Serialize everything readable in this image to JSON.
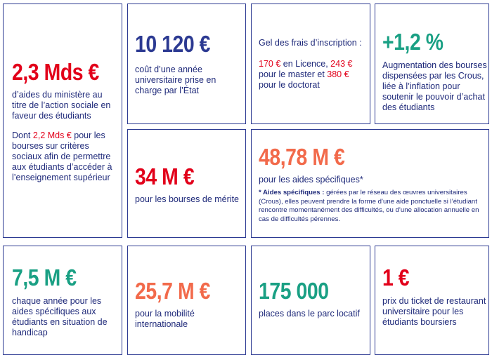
{
  "colors": {
    "navy": "#2c3a92",
    "red": "#e2001a",
    "green": "#1aa084",
    "orange": "#f26a4b"
  },
  "card1": {
    "value": "2,3 Mds €",
    "desc": "d’aides du ministère au titre de l’action sociale en faveur des étudiants",
    "sub_prefix": "Dont ",
    "sub_value": "2,2 Mds €",
    "sub_suffix": " pour les bourses sur critères sociaux afin de permettre aux étudiants d’accéder à l’enseignement supérieur"
  },
  "card2": {
    "value": "10 120 €",
    "desc": "coût d’une année universitaire prise en charge par l’État"
  },
  "card3": {
    "title": "Gel des frais d’inscription :",
    "v1": "170 €",
    "t1": " en Licence, ",
    "v2": "243 €",
    "t2": " pour le master et ",
    "v3": "380 €",
    "t3": " pour le doctorat"
  },
  "card4": {
    "value": "+1,2 %",
    "desc": "Augmentation des bourses dispensées par les Crous, liée à l’inflation pour soutenir le pouvoir d’achat des étudiants"
  },
  "card5": {
    "value": "34 M €",
    "desc": "pour les bourses de mérite"
  },
  "card6": {
    "value": "48,78 M €",
    "desc": "pour les aides spécifiques*",
    "note_label": "* Aides spécifiques :",
    "note_text": " gérées par le réseau des œuvres universitaires (Crous), elles peuvent prendre la forme d’une aide ponctuelle si l’étudiant rencontre momentanément des difficultés, ou d’une allocation annuelle en cas de difficultés pérennes."
  },
  "card7": {
    "value": "7,5 M €",
    "desc": "chaque année pour les aides spécifiques aux étudiants en situation de handicap"
  },
  "card8": {
    "value": "25,7 M €",
    "desc": "pour la mobilité internationale"
  },
  "card9": {
    "value": "175 000",
    "desc": "places dans le parc locatif"
  },
  "card10": {
    "value": "1 €",
    "desc": "prix du ticket de restaurant universitaire pour les étudiants boursiers"
  }
}
